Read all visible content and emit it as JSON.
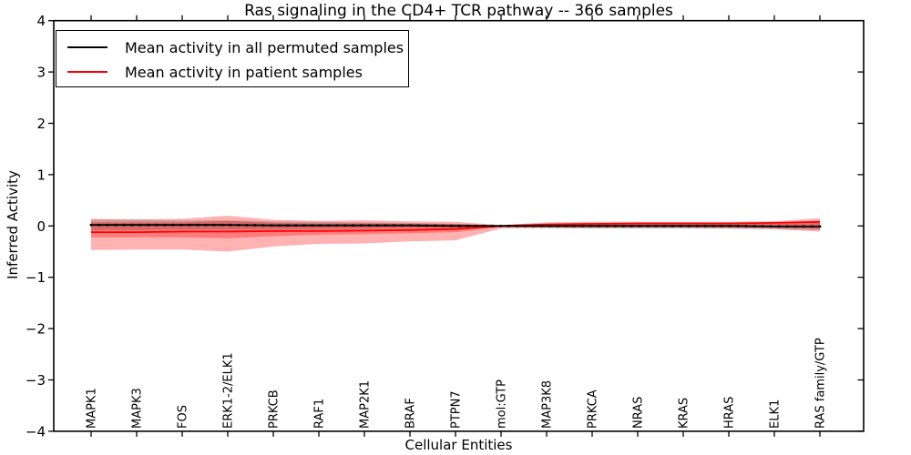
{
  "title": "Ras signaling in the CD4+ TCR pathway -- 366 samples",
  "axes": {
    "xlabel": "Cellular Entities",
    "ylabel": "Inferred Activity",
    "ylim": [
      -4,
      4
    ],
    "yticks": [
      {
        "value": 4,
        "label": "4"
      },
      {
        "value": 3,
        "label": "3"
      },
      {
        "value": 2,
        "label": "2"
      },
      {
        "value": 1,
        "label": "1"
      },
      {
        "value": 0,
        "label": "0"
      },
      {
        "value": -1,
        "label": "−1"
      },
      {
        "value": -2,
        "label": "−2"
      },
      {
        "value": -3,
        "label": "−3"
      },
      {
        "value": -4,
        "label": "−4"
      }
    ]
  },
  "legend": {
    "entries": [
      {
        "label": "Mean activity in all permuted samples",
        "color": "#000000"
      },
      {
        "label": "Mean activity in patient samples",
        "color": "#ff0000"
      }
    ]
  },
  "chart_data": {
    "type": "line",
    "title": "Ras signaling in the CD4+ TCR pathway -- 366 samples",
    "xlabel": "Cellular Entities",
    "ylabel": "Inferred Activity",
    "ylim": [
      -4,
      4
    ],
    "grid": false,
    "legend_position": "upper left",
    "categories": [
      "MAPK1",
      "MAPK3",
      "FOS",
      "ERK1-2/ELK1",
      "PRKCB",
      "RAF1",
      "MAP2K1",
      "BRAF",
      "PTPN7",
      "mol:GTP",
      "MAP3K8",
      "PRKCA",
      "NRAS",
      "KRAS",
      "HRAS",
      "ELK1",
      "RAS family/GTP"
    ],
    "series": [
      {
        "name": "Mean activity in all permuted samples",
        "color": "#000000",
        "marker": "square",
        "band_fill": "rgba(0,0,0,0.16)",
        "values": [
          0.02,
          0.02,
          0.02,
          0.02,
          0.01,
          0.01,
          0.01,
          0.01,
          0.0,
          0.0,
          0.0,
          0.0,
          0.0,
          0.0,
          0.0,
          -0.01,
          -0.01
        ],
        "band_half_width": [
          0.1,
          0.1,
          0.09,
          0.09,
          0.08,
          0.07,
          0.06,
          0.05,
          0.04,
          0.015,
          0.04,
          0.05,
          0.05,
          0.05,
          0.05,
          0.05,
          0.07
        ]
      },
      {
        "name": "Mean activity in patient samples",
        "color": "#ff0000",
        "marker": "none",
        "band_fill": "rgba(255,0,0,0.30)",
        "values": [
          -0.12,
          -0.12,
          -0.11,
          -0.11,
          -0.1,
          -0.1,
          -0.09,
          -0.08,
          -0.06,
          0.0,
          0.03,
          0.04,
          0.05,
          0.05,
          0.05,
          0.06,
          0.08
        ],
        "band_outer_top": [
          0.14,
          0.13,
          0.14,
          0.2,
          0.12,
          0.1,
          0.11,
          0.09,
          0.08,
          0.02,
          0.07,
          0.08,
          0.08,
          0.08,
          0.08,
          0.09,
          0.15
        ],
        "band_outer_bottom": [
          -0.47,
          -0.46,
          -0.46,
          -0.5,
          -0.4,
          -0.35,
          -0.34,
          -0.3,
          -0.28,
          -0.05,
          -0.04,
          -0.04,
          -0.04,
          -0.04,
          -0.05,
          -0.06,
          -0.11
        ],
        "band_inner_top": [
          0.07,
          0.07,
          0.07,
          0.1,
          0.06,
          0.05,
          0.05,
          0.04,
          0.04,
          0.01,
          0.04,
          0.05,
          0.05,
          0.05,
          0.05,
          0.06,
          0.1
        ],
        "band_inner_bottom": [
          -0.22,
          -0.22,
          -0.22,
          -0.24,
          -0.2,
          -0.17,
          -0.16,
          -0.14,
          -0.12,
          -0.02,
          -0.02,
          -0.02,
          -0.02,
          -0.02,
          -0.02,
          -0.03,
          -0.06
        ]
      }
    ]
  }
}
